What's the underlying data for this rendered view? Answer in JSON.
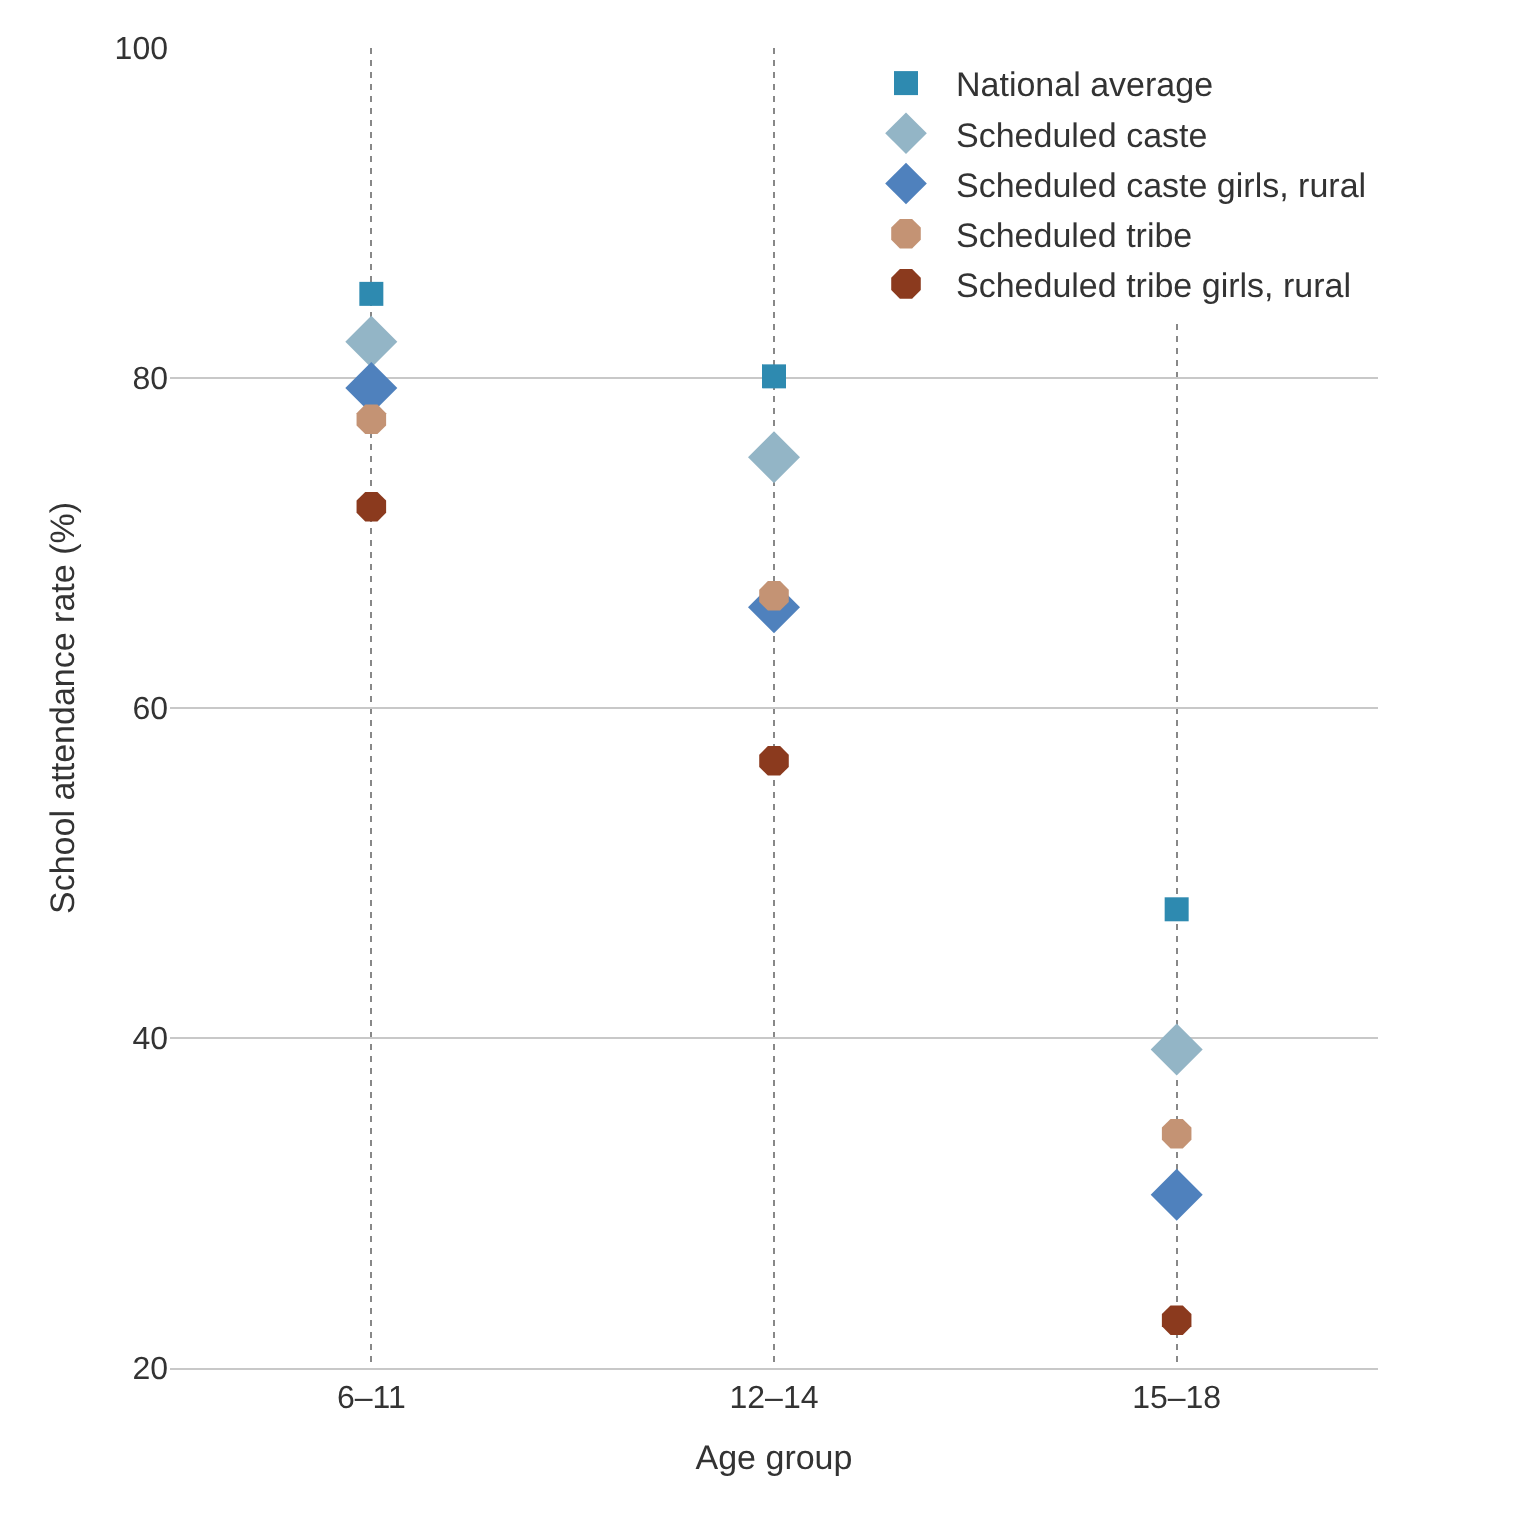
{
  "chart_data": {
    "type": "scatter",
    "xlabel": "Age group",
    "ylabel": "School attendance rate (%)",
    "categories": [
      "6–11",
      "12–14",
      "15–18"
    ],
    "series": [
      {
        "name": "National average",
        "marker": "square",
        "color": "#2e8ab0",
        "values": [
          85.1,
          80.1,
          47.8
        ]
      },
      {
        "name": "Scheduled caste",
        "color": "#93b5c6",
        "marker": "diamond",
        "values": [
          82.2,
          75.2,
          39.3
        ]
      },
      {
        "name": "Scheduled caste girls, rural",
        "color": "#4f81bd",
        "marker": "diamond",
        "values": [
          79.4,
          66.1,
          30.5
        ]
      },
      {
        "name": "Scheduled tribe",
        "color": "#c49374",
        "marker": "circle",
        "values": [
          77.5,
          66.8,
          34.2
        ]
      },
      {
        "name": "Scheduled tribe girls, rural",
        "color": "#8b3a1e",
        "marker": "circle",
        "values": [
          72.2,
          56.8,
          22.9
        ]
      }
    ],
    "ylim": [
      20,
      100
    ],
    "yticks": [
      20,
      40,
      60,
      80,
      100
    ],
    "grid": true,
    "legend": "top right"
  }
}
